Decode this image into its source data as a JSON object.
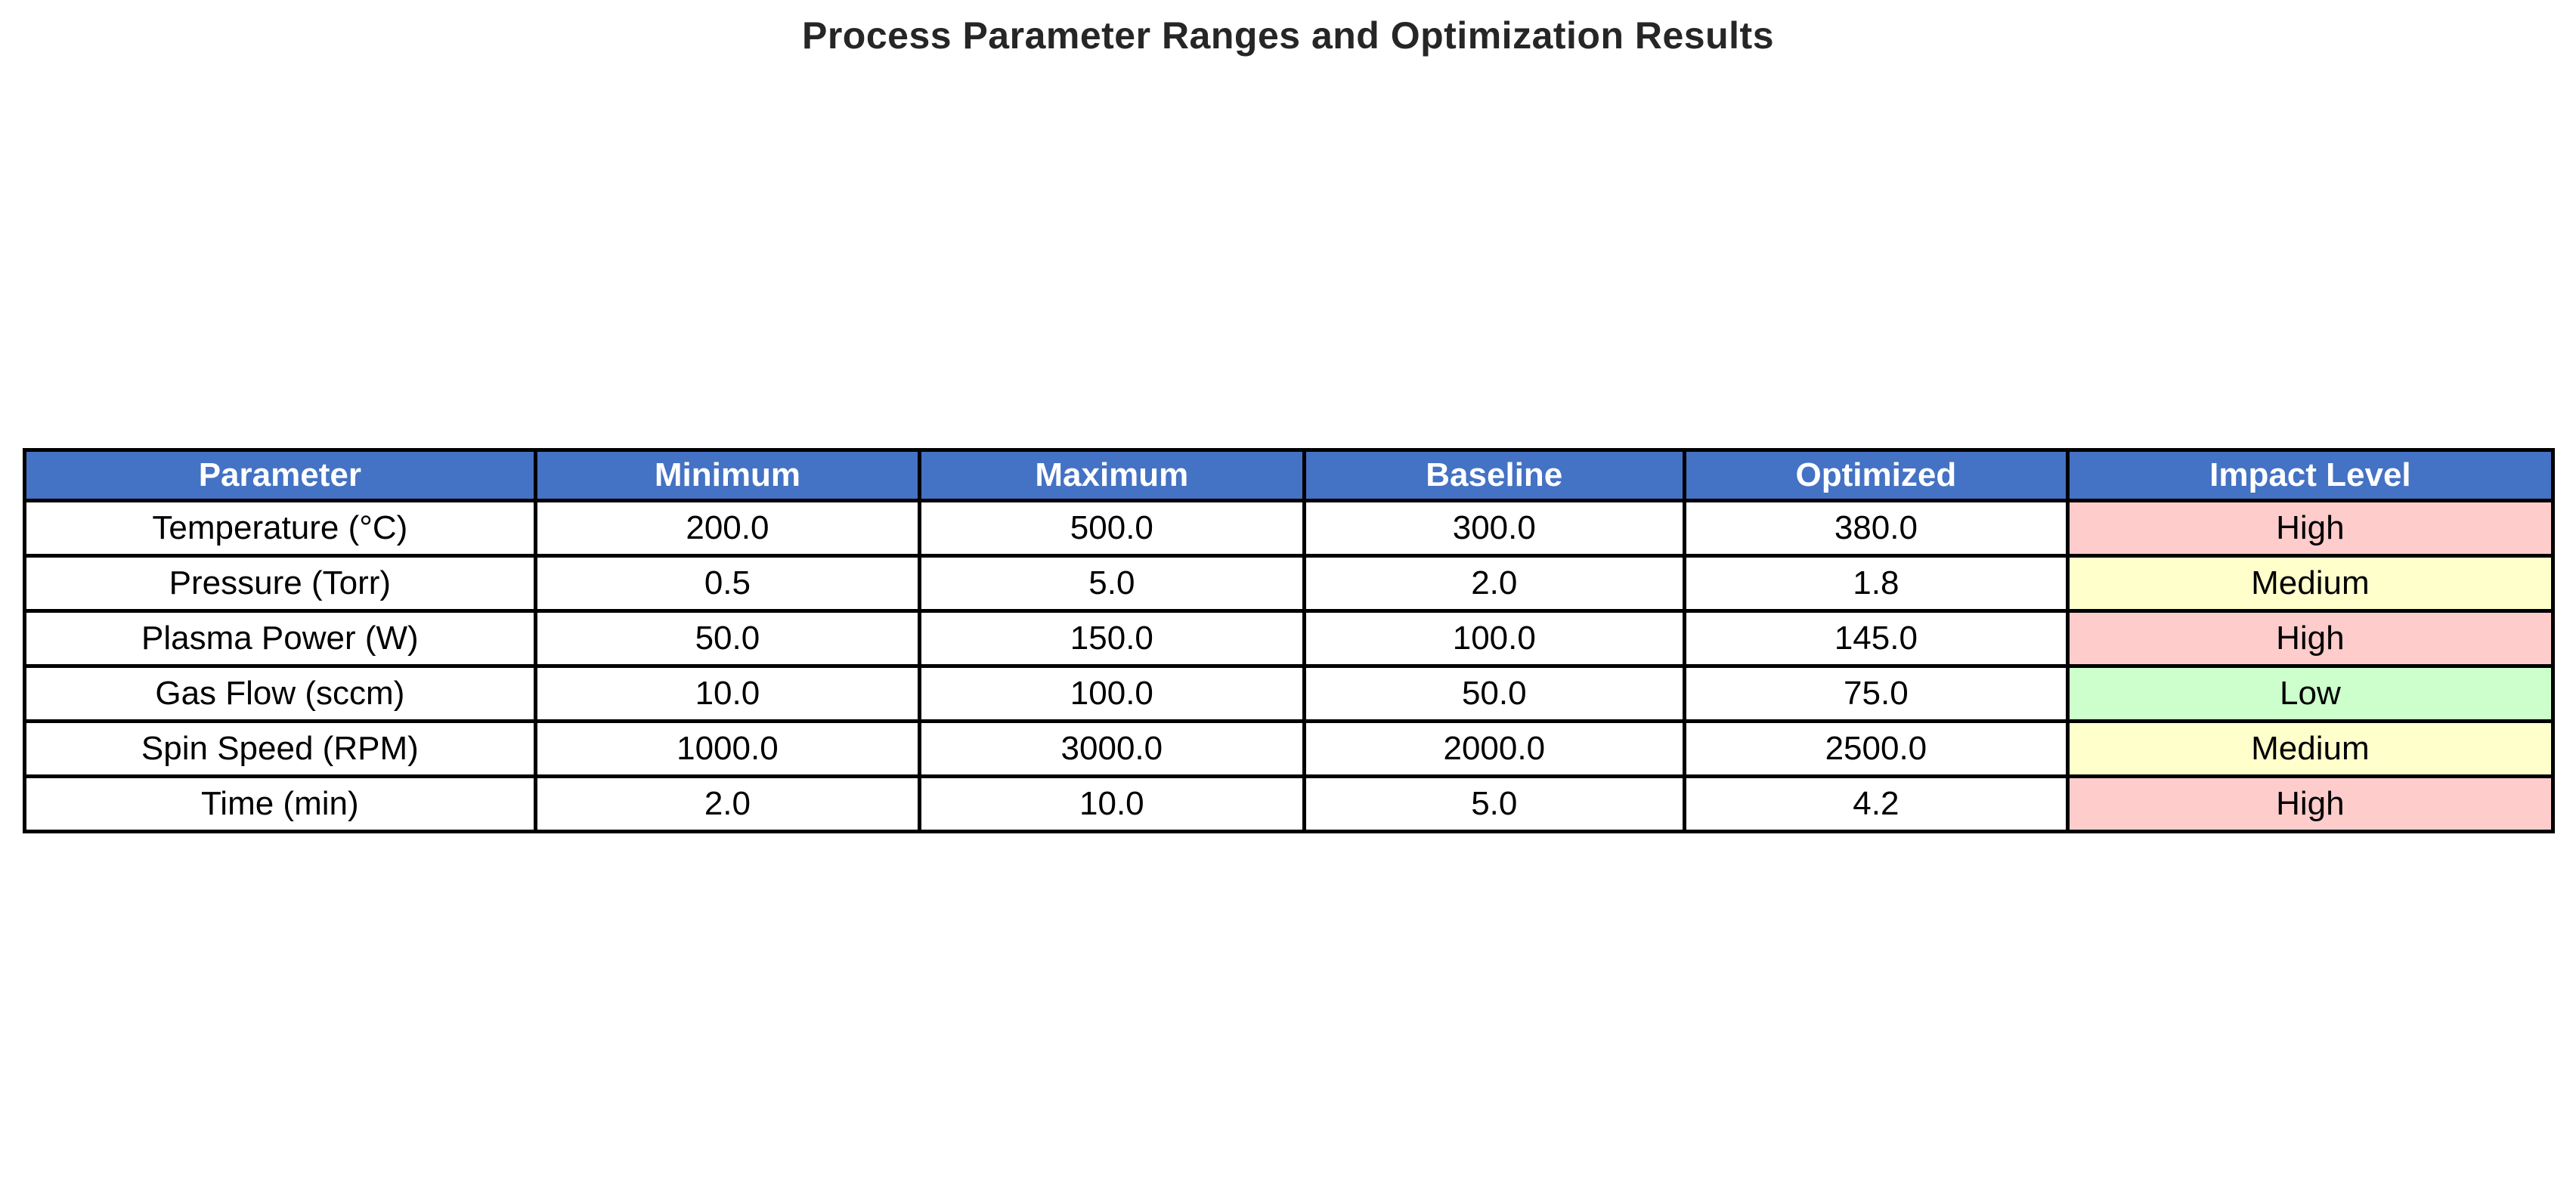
{
  "chart_data": {
    "type": "table",
    "title": "Process Parameter Ranges and Optimization Results",
    "columns": [
      "Parameter",
      "Minimum",
      "Maximum",
      "Baseline",
      "Optimized",
      "Impact Level"
    ],
    "rows": [
      [
        "Temperature (°C)",
        "200.0",
        "500.0",
        "300.0",
        "380.0",
        "High"
      ],
      [
        "Pressure (Torr)",
        "0.5",
        "5.0",
        "2.0",
        "1.8",
        "Medium"
      ],
      [
        "Plasma Power (W)",
        "50.0",
        "150.0",
        "100.0",
        "145.0",
        "High"
      ],
      [
        "Gas Flow (sccm)",
        "10.0",
        "100.0",
        "50.0",
        "75.0",
        "Low"
      ],
      [
        "Spin Speed (RPM)",
        "1000.0",
        "3000.0",
        "2000.0",
        "2500.0",
        "Medium"
      ],
      [
        "Time (min)",
        "2.0",
        "10.0",
        "5.0",
        "4.2",
        "High"
      ]
    ],
    "legend_position": "none",
    "grid": "full-borders"
  },
  "colors": {
    "header_bg": "#4472C4",
    "header_text": "#FFFFFF",
    "cell_bg": "#FFFFFF",
    "border": "#000000",
    "title_text": "#262626",
    "impact_high": "#FFCCCC",
    "impact_medium": "#FFFFCC",
    "impact_low": "#CCFFCC"
  }
}
